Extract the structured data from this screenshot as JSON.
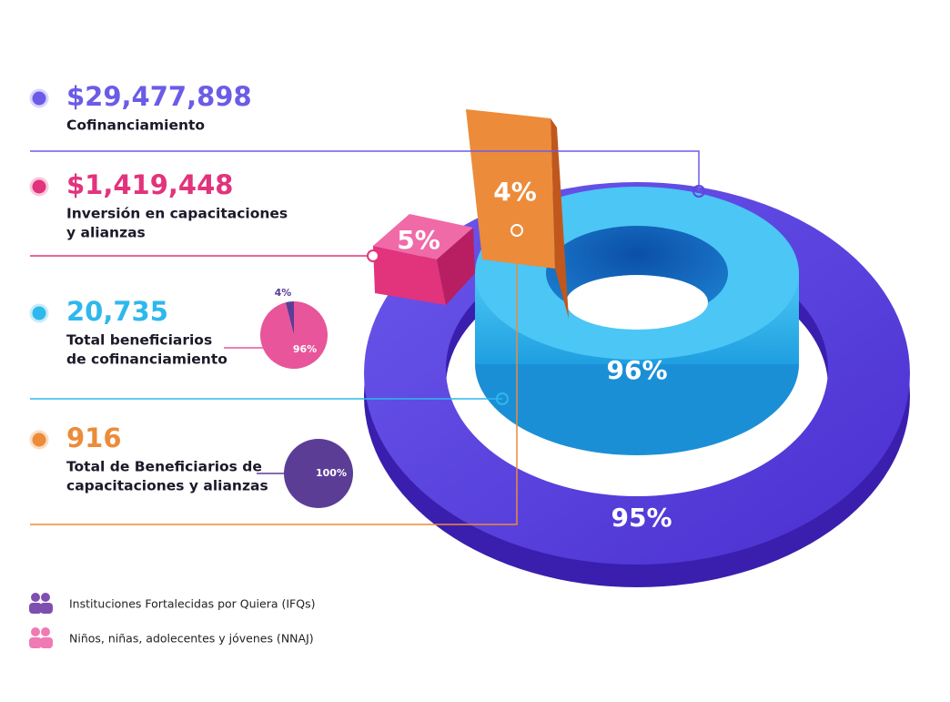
{
  "items": [
    {
      "amount": "$29,477,898",
      "label": [
        "Cofinanciamiento"
      ]
    },
    {
      "amount": "$1,419,448",
      "label": [
        "Inversión en capacitaciones",
        "y alianzas"
      ]
    },
    {
      "amount": "20,735",
      "label": [
        "Total beneficiarios",
        "de cofinanciamiento"
      ]
    },
    {
      "amount": "916",
      "label": [
        "Total de Beneficiarios de",
        "capacitaciones y alianzas"
      ]
    }
  ],
  "pies": [
    {
      "segments": [
        {
          "value": 4,
          "label": "4%"
        },
        {
          "value": 96,
          "label": "96%"
        }
      ]
    },
    {
      "segments": [
        {
          "value": 100,
          "label": "100%"
        }
      ]
    }
  ],
  "rings": {
    "bar": "4%",
    "cube": "5%",
    "inner": "96%",
    "outer": "95%"
  },
  "legend": [
    "Instituciones Fortalecidas por Quiera (IFQs)",
    "Niños, niñas, adolecentes y jóvenes (NNAJ)"
  ]
}
